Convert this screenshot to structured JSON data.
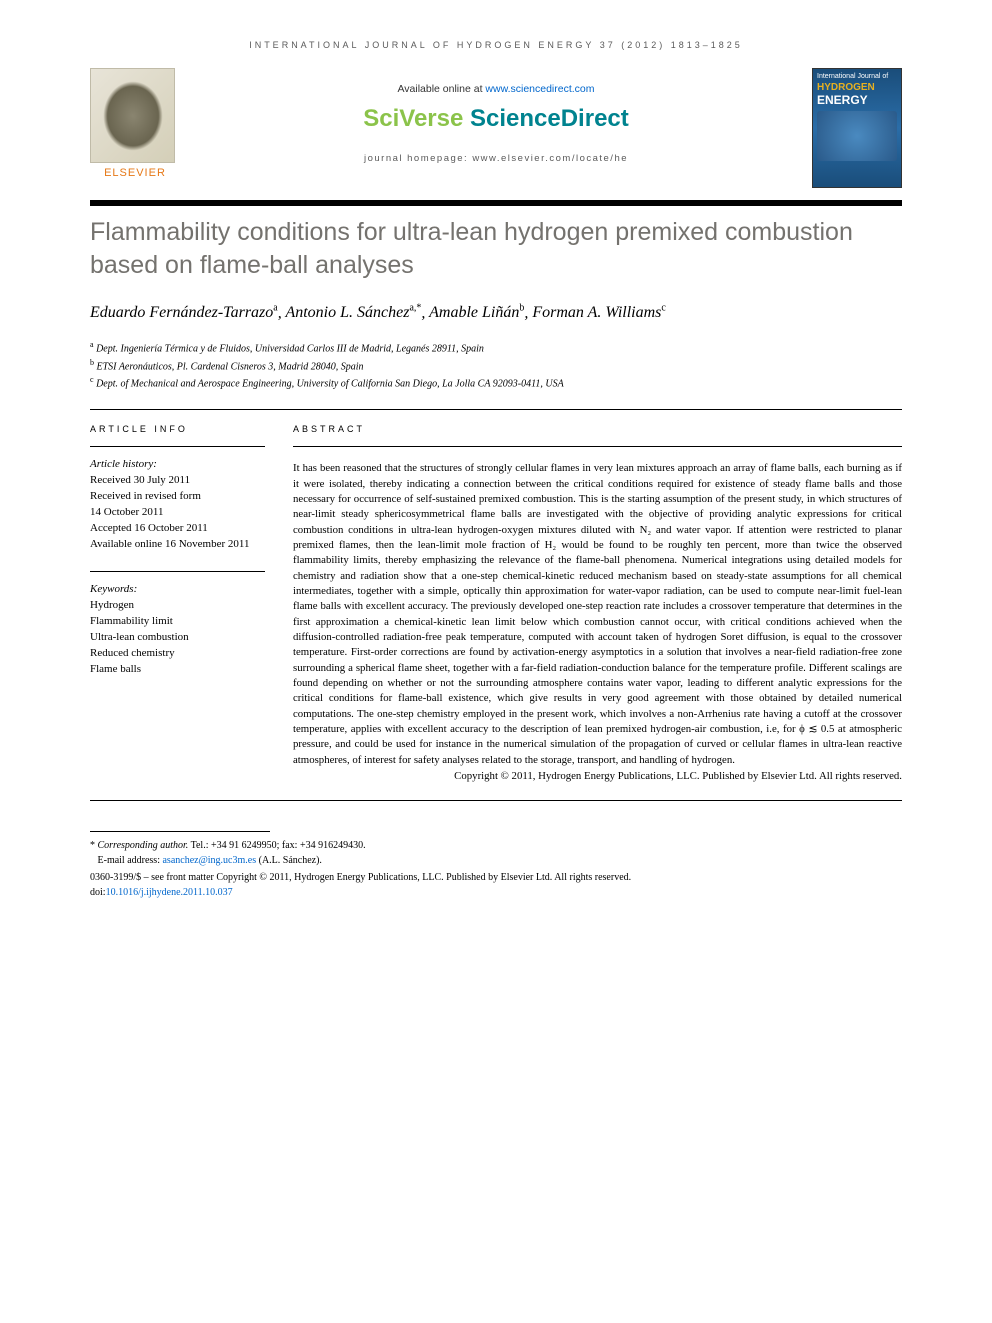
{
  "journal_header": "INTERNATIONAL JOURNAL OF HYDROGEN ENERGY 37 (2012) 1813–1825",
  "publisher": {
    "name": "ELSEVIER",
    "available_prefix": "Available online at ",
    "available_link": "www.sciencedirect.com",
    "platform_sci": "SciVerse",
    "platform_direct": " ScienceDirect",
    "homepage": "journal homepage: www.elsevier.com/locate/he"
  },
  "cover": {
    "line1": "International Journal of",
    "line2": "HYDROGEN",
    "line3": "ENERGY"
  },
  "title": "Flammability conditions for ultra-lean hydrogen premixed combustion based on flame-ball analyses",
  "authors": [
    {
      "name": "Eduardo Fernández-Tarrazo",
      "aff": "a"
    },
    {
      "name": "Antonio L. Sánchez",
      "aff": "a",
      "corr": true
    },
    {
      "name": "Amable Liñán",
      "aff": "b"
    },
    {
      "name": "Forman A. Williams",
      "aff": "c"
    }
  ],
  "affiliations": [
    {
      "sup": "a",
      "text": "Dept. Ingeniería Térmica y de Fluidos, Universidad Carlos III de Madrid, Leganés 28911, Spain"
    },
    {
      "sup": "b",
      "text": "ETSI Aeronáuticos, Pl. Cardenal Cisneros 3, Madrid 28040, Spain"
    },
    {
      "sup": "c",
      "text": "Dept. of Mechanical and Aerospace Engineering, University of California San Diego, La Jolla CA 92093-0411, USA"
    }
  ],
  "article_info": {
    "header": "ARTICLE INFO",
    "history_label": "Article history:",
    "received": "Received 30 July 2011",
    "revised1": "Received in revised form",
    "revised2": "14 October 2011",
    "accepted": "Accepted 16 October 2011",
    "online": "Available online 16 November 2011"
  },
  "keywords": {
    "label": "Keywords:",
    "items": [
      "Hydrogen",
      "Flammability limit",
      "Ultra-lean combustion",
      "Reduced chemistry",
      "Flame balls"
    ]
  },
  "abstract": {
    "header": "ABSTRACT",
    "text": "It has been reasoned that the structures of strongly cellular flames in very lean mixtures approach an array of flame balls, each burning as if it were isolated, thereby indicating a connection between the critical conditions required for existence of steady flame balls and those necessary for occurrence of self-sustained premixed combustion. This is the starting assumption of the present study, in which structures of near-limit steady sphericosymmetrical flame balls are investigated with the objective of providing analytic expressions for critical combustion conditions in ultra-lean hydrogen-oxygen mixtures diluted with N₂ and water vapor. If attention were restricted to planar premixed flames, then the lean-limit mole fraction of H₂ would be found to be roughly ten percent, more than twice the observed flammability limits, thereby emphasizing the relevance of the flame-ball phenomena. Numerical integrations using detailed models for chemistry and radiation show that a one-step chemical-kinetic reduced mechanism based on steady-state assumptions for all chemical intermediates, together with a simple, optically thin approximation for water-vapor radiation, can be used to compute near-limit fuel-lean flame balls with excellent accuracy. The previously developed one-step reaction rate includes a crossover temperature that determines in the first approximation a chemical-kinetic lean limit below which combustion cannot occur, with critical conditions achieved when the diffusion-controlled radiation-free peak temperature, computed with account taken of hydrogen Soret diffusion, is equal to the crossover temperature. First-order corrections are found by activation-energy asymptotics in a solution that involves a near-field radiation-free zone surrounding a spherical flame sheet, together with a far-field radiation-conduction balance for the temperature profile. Different scalings are found depending on whether or not the surrounding atmosphere contains water vapor, leading to different analytic expressions for the critical conditions for flame-ball existence, which give results in very good agreement with those obtained by detailed numerical computations. The one-step chemistry employed in the present work, which involves a non-Arrhenius rate having a cutoff at the crossover temperature, applies with excellent accuracy to the description of lean premixed hydrogen-air combustion, i.e, for ϕ ≲ 0.5 at atmospheric pressure, and could be used for instance in the numerical simulation of the propagation of curved or cellular flames in ultra-lean reactive atmospheres, of interest for safety analyses related to the storage, transport, and handling of hydrogen.",
    "copyright": "Copyright © 2011, Hydrogen Energy Publications, LLC. Published by Elsevier Ltd. All rights reserved."
  },
  "footer": {
    "corr_label": "Corresponding author.",
    "corr_contact": " Tel.: +34 91 6249950; fax: +34 916249430.",
    "email_label": "E-mail address: ",
    "email": "asanchez@ing.uc3m.es",
    "email_suffix": " (A.L. Sánchez).",
    "issn": "0360-3199/$ – see front matter Copyright © 2011, Hydrogen Energy Publications, LLC. Published by Elsevier Ltd. All rights reserved.",
    "doi_prefix": "doi:",
    "doi": "10.1016/j.ijhydene.2011.10.037"
  }
}
